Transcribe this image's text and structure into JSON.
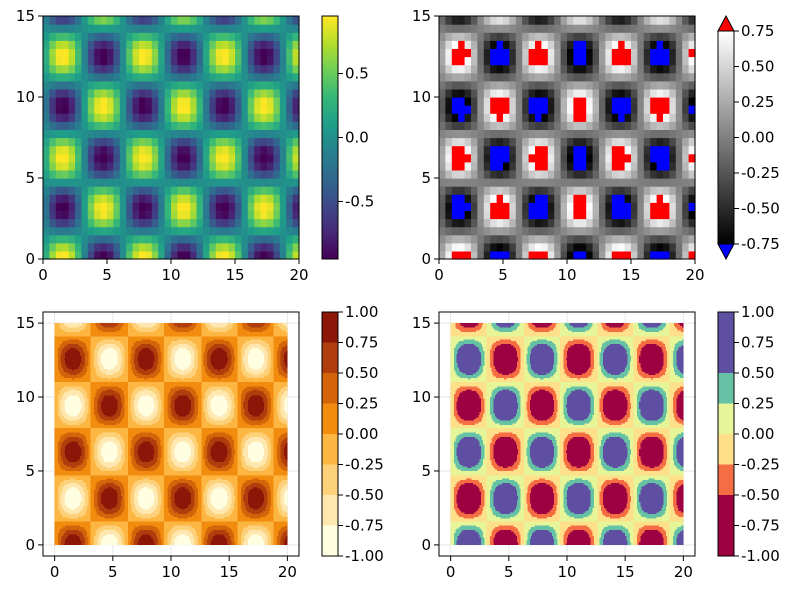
{
  "chart_data": [
    {
      "type": "heatmap",
      "variant": "sampled-grid",
      "colormap": "viridis",
      "function": "sin(x) * cos(y)",
      "x": [
        0,
        20
      ],
      "y": [
        0,
        15
      ],
      "xlim": [
        0,
        20
      ],
      "ylim": [
        0,
        15
      ],
      "x_ticks": [
        "0",
        "5",
        "10",
        "15",
        "20"
      ],
      "y_ticks": [
        "0",
        "5",
        "10",
        "15"
      ],
      "colorbar": {
        "range": [
          -0.95,
          0.95
        ],
        "ticks": [
          "-0.5",
          "0.0",
          "0.5"
        ],
        "tick_values": [
          -0.5,
          0,
          0.5
        ]
      },
      "grid": false
    },
    {
      "type": "heatmap",
      "variant": "sampled-grid-clipped",
      "colormap": "grays",
      "function": "sin(x) * cos(y)",
      "x": [
        0,
        20
      ],
      "y": [
        0,
        15
      ],
      "xlim": [
        0,
        20
      ],
      "ylim": [
        0,
        15
      ],
      "x_ticks": [
        "0",
        "5",
        "10",
        "15",
        "20"
      ],
      "y_ticks": [
        "0",
        "5",
        "10",
        "15"
      ],
      "colorrange": [
        -0.75,
        0.75
      ],
      "highclip": "#ff0000",
      "lowclip": "#0000ff",
      "colorbar": {
        "range": [
          -0.75,
          0.75
        ],
        "ticks": [
          "-0.75",
          "-0.50",
          "-0.25",
          "0.00",
          "0.25",
          "0.50",
          "0.75"
        ],
        "tick_values": [
          -0.75,
          -0.5,
          -0.25,
          0,
          0.25,
          0.5,
          0.75
        ],
        "extend": "both"
      },
      "grid": false
    },
    {
      "type": "contourf",
      "colormap": "YlOrBr / hot",
      "function": "sin(x) * cos(y)",
      "x": [
        0,
        20
      ],
      "y": [
        0,
        15
      ],
      "xlim": [
        -1,
        21
      ],
      "ylim": [
        -0.75,
        15.75
      ],
      "x_ticks": [
        "0",
        "5",
        "10",
        "15",
        "20"
      ],
      "y_ticks": [
        "0",
        "5",
        "10",
        "15"
      ],
      "levels": [
        -1,
        -0.75,
        -0.5,
        -0.25,
        0,
        0.25,
        0.5,
        0.75,
        1
      ],
      "level_colors": [
        "#fffee0",
        "#fee8b0",
        "#fdd07a",
        "#fdb642",
        "#f28c0f",
        "#d4640a",
        "#b03e0d",
        "#8c1708"
      ],
      "colorbar": {
        "range": [
          -1,
          1
        ],
        "ticks": [
          "-1.00",
          "-0.75",
          "-0.50",
          "-0.25",
          "0.00",
          "0.25",
          "0.50",
          "0.75",
          "1.00"
        ],
        "tick_values": [
          -1,
          -0.75,
          -0.5,
          -0.25,
          0,
          0.25,
          0.5,
          0.75,
          1
        ]
      },
      "grid": true
    },
    {
      "type": "contourf",
      "colormap": "Spectral",
      "function": "sin(x) * cos(y)",
      "x": [
        0,
        20
      ],
      "y": [
        0,
        15
      ],
      "xlim": [
        -1,
        21
      ],
      "ylim": [
        -0.75,
        15.75
      ],
      "x_ticks": [
        "0",
        "5",
        "10",
        "15",
        "20"
      ],
      "y_ticks": [
        "0",
        "5",
        "10",
        "15"
      ],
      "levels": [
        -1,
        -0.75,
        -0.5,
        -0.25,
        0,
        0.25,
        0.5,
        0.75,
        1
      ],
      "level_colors": [
        "#9e0142",
        "#9e0142",
        "#f46d43",
        "#fee08b",
        "#e6f598",
        "#66c2a5",
        "#5e4fa2",
        "#5e4fa2"
      ],
      "colorbar": {
        "range": [
          -1,
          1
        ],
        "ticks": [
          "-1.00",
          "-0.75",
          "-0.50",
          "-0.25",
          "0.00",
          "0.25",
          "0.50",
          "0.75",
          "1.00"
        ],
        "tick_values": [
          -1,
          -0.75,
          -0.5,
          -0.25,
          0,
          0.25,
          0.5,
          0.75,
          1
        ]
      },
      "grid": true
    }
  ]
}
